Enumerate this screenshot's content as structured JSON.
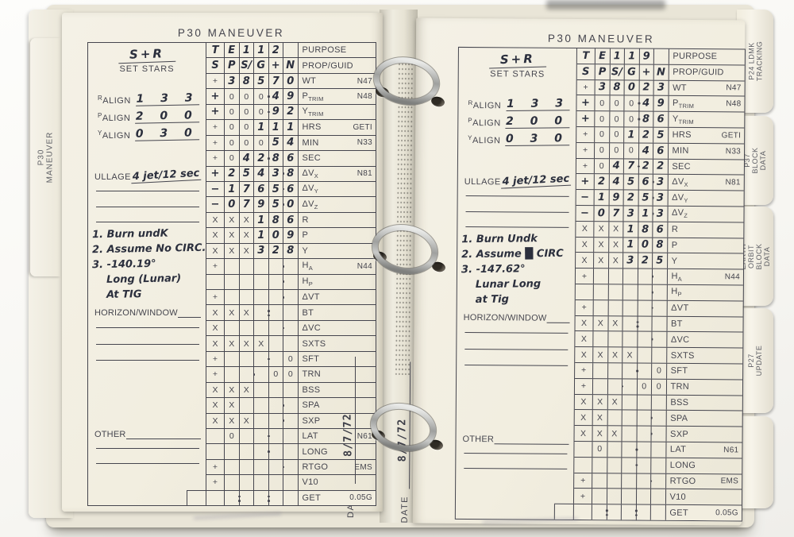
{
  "binder": {
    "left_tab": "P30 MANEUVER",
    "right_tabs": [
      "P24 LDMK TRACKING",
      "P37 BLOCK DATA",
      "EARTH ORBIT\nBLOCK DATA",
      "P27 UPDATE"
    ]
  },
  "colors": {
    "paper": "#f2eee0",
    "ink": "#45454e",
    "handwriting": "#2b2f3d",
    "ring_metal": "#b9bab8"
  },
  "pages": [
    {
      "side": "left",
      "title": "P30 MANEUVER",
      "header_hw": "S+R",
      "header_printed": "SET STARS",
      "aligns": [
        {
          "sup": "R",
          "label": "ALIGN",
          "value": "1 3 3"
        },
        {
          "sup": "P",
          "label": "ALIGN",
          "value": "2 0 0"
        },
        {
          "sup": "Y",
          "label": "ALIGN",
          "value": "0 3 0"
        }
      ],
      "ullage": {
        "label": "ULLAGE",
        "value": "4 jet/12 sec"
      },
      "notes": [
        {
          "t": "1. Burn undK"
        },
        {
          "t": "2. Assume No CIRC."
        },
        {
          "t": "3. -140.19°"
        },
        {
          "t": "Long (Lunar)",
          "i": 1
        },
        {
          "t": "At TIG",
          "i": 1
        }
      ],
      "horizon_label": "HORIZON/WINDOW",
      "other_label": "OTHER",
      "date": {
        "label": "DATE",
        "value": "8/7/72"
      },
      "grid": [
        {
          "s": "T",
          "sh": 1,
          "c": [
            "E",
            "1",
            "1",
            "2",
            ""
          ],
          "hw": 0,
          "lab": {
            "m": "PURPOSE"
          }
        },
        {
          "s": "S",
          "sh": 1,
          "c": [
            "P",
            "S/",
            "G",
            "+",
            "N"
          ],
          "hw": 0,
          "lab": {
            "m": "PROP/GUID"
          }
        },
        {
          "g": 1,
          "s": "+",
          "c": [
            "3",
            "8",
            "5",
            "7",
            "0"
          ],
          "hw": 0,
          "lab": {
            "m": "WT",
            "ref": "N47"
          }
        },
        {
          "g": 1,
          "s": "+",
          "sh": 1,
          "c": [
            "0",
            "0",
            "0",
            "4",
            "9"
          ],
          "hw": 3,
          "d": 2,
          "lab": {
            "m": "P",
            "sub": "TRIM",
            "ref": "N48"
          }
        },
        {
          "s": "+",
          "sh": 1,
          "c": [
            "0",
            "0",
            "0",
            "9",
            "2"
          ],
          "hw": 3,
          "d": 2,
          "lab": {
            "m": "Y",
            "sub": "TRIM"
          }
        },
        {
          "g": 1,
          "s": "+",
          "c": [
            "0",
            "0",
            "1",
            "1",
            "1"
          ],
          "hw": 2,
          "lab": {
            "m": "HRS",
            "ref": "GETI"
          }
        },
        {
          "s": "+",
          "c": [
            "0",
            "0",
            "0",
            "5",
            "4"
          ],
          "hw": 3,
          "lab": {
            "m": "MIN",
            "ref": "N33"
          }
        },
        {
          "s": "+",
          "c": [
            "0",
            "4",
            "2",
            "8",
            "6"
          ],
          "hw": 1,
          "d": 2,
          "lab": {
            "m": "SEC"
          }
        },
        {
          "g": 1,
          "s": "+",
          "sh": 1,
          "c": [
            "2",
            "5",
            "4",
            "3",
            "8"
          ],
          "hw": 0,
          "d": 3,
          "lab": {
            "m": "ΔV",
            "sub": "X",
            "ref": "N81"
          }
        },
        {
          "s": "−",
          "sh": 1,
          "c": [
            "1",
            "7",
            "6",
            "5",
            "6"
          ],
          "hw": 0,
          "d": 3,
          "lab": {
            "m": "ΔV",
            "sub": "Y"
          }
        },
        {
          "s": "−",
          "sh": 1,
          "c": [
            "0",
            "7",
            "9",
            "5",
            "0"
          ],
          "hw": 0,
          "d": 3,
          "lab": {
            "m": "ΔV",
            "sub": "Z"
          }
        },
        {
          "g": 1,
          "s": "X",
          "c": [
            "X",
            "X",
            "1",
            "8",
            "6"
          ],
          "hw": 2,
          "lab": {
            "m": "R"
          }
        },
        {
          "s": "X",
          "c": [
            "X",
            "X",
            "1",
            "0",
            "9"
          ],
          "hw": 2,
          "lab": {
            "m": "P"
          }
        },
        {
          "s": "X",
          "c": [
            "X",
            "X",
            "3",
            "2",
            "8"
          ],
          "hw": 2,
          "lab": {
            "m": "Y"
          }
        },
        {
          "g": 1,
          "s": "+",
          "c": [
            "",
            "",
            "",
            "",
            ""
          ],
          "d": 3,
          "lab": {
            "m": "H",
            "sub": "A",
            "ref": "N44"
          }
        },
        {
          "c": [
            "",
            "",
            "",
            "",
            ""
          ],
          "d": 3,
          "lab": {
            "m": "H",
            "sub": "P"
          }
        },
        {
          "g": 1,
          "s": "+",
          "c": [
            "",
            "",
            "",
            "",
            ""
          ],
          "d": 3,
          "lab": {
            "m": "ΔVT"
          }
        },
        {
          "s": "X",
          "c": [
            "X",
            "X",
            "",
            "",
            ""
          ],
          "col": [
            2
          ],
          "lab": {
            "m": "BT"
          }
        },
        {
          "s": "X",
          "c": [
            "",
            "",
            "",
            "",
            ""
          ],
          "d": 3,
          "lab": {
            "m": "ΔVC"
          }
        },
        {
          "g": 1,
          "s": "X",
          "c": [
            "X",
            "X",
            "X",
            "",
            ""
          ],
          "lab": {
            "m": "SXTS"
          }
        },
        {
          "s": "+",
          "c": [
            "",
            "",
            "",
            "",
            "0"
          ],
          "d": 2,
          "lab": {
            "m": "SFT"
          }
        },
        {
          "s": "+",
          "c": [
            "",
            "",
            "",
            "0",
            "0"
          ],
          "d": 1,
          "lab": {
            "m": "TRN"
          }
        },
        {
          "g": 1,
          "s": "X",
          "c": [
            "X",
            "X",
            "",
            "",
            ""
          ],
          "lab": {
            "m": "BSS"
          }
        },
        {
          "s": "X",
          "c": [
            "X",
            "",
            "",
            "",
            ""
          ],
          "d": 3,
          "lab": {
            "m": "SPA"
          }
        },
        {
          "s": "X",
          "c": [
            "X",
            "X",
            "",
            "",
            ""
          ],
          "d": 3,
          "lab": {
            "m": "SXP"
          }
        },
        {
          "g": 1,
          "c": [
            "0",
            "",
            "",
            "",
            ""
          ],
          "d": 2,
          "lab": {
            "m": "LAT",
            "ref": "N61"
          }
        },
        {
          "c": [
            "",
            "",
            "",
            "",
            ""
          ],
          "d": 2,
          "lab": {
            "m": "LONG"
          }
        },
        {
          "g": 1,
          "s": "+",
          "c": [
            "",
            "",
            "",
            "",
            ""
          ],
          "d": 3,
          "lab": {
            "m": "RTGO",
            "ref": "EMS"
          }
        },
        {
          "s": "+",
          "c": [
            "",
            "",
            "",
            "",
            ""
          ],
          "lab": {
            "m": "V10"
          }
        },
        {
          "g": 1,
          "shift": 1,
          "c": [
            "",
            "",
            "",
            "",
            ""
          ],
          "col": [
            0,
            2
          ],
          "lab": {
            "m": "GET",
            "ref": "0.05G"
          }
        }
      ]
    },
    {
      "side": "right",
      "title": "P30 MANEUVER",
      "header_hw": "S+R",
      "header_printed": "SET STARS",
      "aligns": [
        {
          "sup": "R",
          "label": "ALIGN",
          "value": "1 3 3"
        },
        {
          "sup": "P",
          "label": "ALIGN",
          "value": "2 0 0"
        },
        {
          "sup": "Y",
          "label": "ALIGN",
          "value": "0 3 0"
        }
      ],
      "ullage": {
        "label": "ULLAGE",
        "value": "4 jet/12 sec"
      },
      "notes": [
        {
          "t": "1. Burn Undk"
        },
        {
          "t": "2. Assume █ CIRC"
        },
        {
          "t": "3. -147.62°"
        },
        {
          "t": "Lunar Long",
          "i": 1
        },
        {
          "t": "at Tig",
          "i": 1
        }
      ],
      "horizon_label": "HORIZON/WINDOW",
      "other_label": "OTHER",
      "date": {
        "label": "DATE",
        "value": "8/7/72"
      },
      "grid": [
        {
          "s": "T",
          "sh": 1,
          "c": [
            "E",
            "1",
            "1",
            "9",
            ""
          ],
          "hw": 0,
          "lab": {
            "m": "PURPOSE"
          }
        },
        {
          "s": "S",
          "sh": 1,
          "c": [
            "P",
            "S/",
            "G",
            "+",
            "N"
          ],
          "hw": 0,
          "lab": {
            "m": "PROP/GUID"
          }
        },
        {
          "g": 1,
          "s": "+",
          "c": [
            "3",
            "8",
            "0",
            "2",
            "3"
          ],
          "hw": 0,
          "lab": {
            "m": "WT",
            "ref": "N47"
          }
        },
        {
          "g": 1,
          "s": "+",
          "sh": 1,
          "c": [
            "0",
            "0",
            "0",
            "4",
            "9"
          ],
          "hw": 3,
          "d": 2,
          "lab": {
            "m": "P",
            "sub": "TRIM",
            "ref": "N48"
          }
        },
        {
          "s": "+",
          "sh": 1,
          "c": [
            "0",
            "0",
            "0",
            "8",
            "6"
          ],
          "hw": 3,
          "d": 2,
          "lab": {
            "m": "Y",
            "sub": "TRIM"
          }
        },
        {
          "g": 1,
          "s": "+",
          "c": [
            "0",
            "0",
            "1",
            "2",
            "5"
          ],
          "hw": 2,
          "lab": {
            "m": "HRS",
            "ref": "GETI"
          }
        },
        {
          "s": "+",
          "c": [
            "0",
            "0",
            "0",
            "4",
            "6"
          ],
          "hw": 3,
          "lab": {
            "m": "MIN",
            "ref": "N33"
          }
        },
        {
          "s": "+",
          "c": [
            "0",
            "4",
            "7",
            "2",
            "2"
          ],
          "hw": 1,
          "d": 2,
          "lab": {
            "m": "SEC"
          }
        },
        {
          "g": 1,
          "s": "+",
          "sh": 1,
          "c": [
            "2",
            "4",
            "5",
            "6",
            "3"
          ],
          "hw": 0,
          "d": 3,
          "lab": {
            "m": "ΔV",
            "sub": "X",
            "ref": "N81"
          }
        },
        {
          "s": "−",
          "sh": 1,
          "c": [
            "1",
            "9",
            "2",
            "5",
            "3"
          ],
          "hw": 0,
          "d": 3,
          "lab": {
            "m": "ΔV",
            "sub": "Y"
          }
        },
        {
          "s": "−",
          "sh": 1,
          "c": [
            "0",
            "7",
            "3",
            "1",
            "3"
          ],
          "hw": 0,
          "d": 3,
          "lab": {
            "m": "ΔV",
            "sub": "Z"
          }
        },
        {
          "g": 1,
          "s": "X",
          "c": [
            "X",
            "X",
            "1",
            "8",
            "6"
          ],
          "hw": 2,
          "lab": {
            "m": "R"
          }
        },
        {
          "s": "X",
          "c": [
            "X",
            "X",
            "1",
            "0",
            "8"
          ],
          "hw": 2,
          "lab": {
            "m": "P"
          }
        },
        {
          "s": "X",
          "c": [
            "X",
            "X",
            "3",
            "2",
            "5"
          ],
          "hw": 2,
          "lab": {
            "m": "Y"
          }
        },
        {
          "g": 1,
          "s": "+",
          "c": [
            "",
            "",
            "",
            "",
            ""
          ],
          "d": 3,
          "lab": {
            "m": "H",
            "sub": "A",
            "ref": "N44"
          }
        },
        {
          "c": [
            "",
            "",
            "",
            "",
            ""
          ],
          "d": 3,
          "lab": {
            "m": "H",
            "sub": "P"
          }
        },
        {
          "g": 1,
          "s": "+",
          "c": [
            "",
            "",
            "",
            "",
            ""
          ],
          "d": 3,
          "lab": {
            "m": "ΔVT"
          }
        },
        {
          "s": "X",
          "c": [
            "X",
            "X",
            "",
            "",
            ""
          ],
          "col": [
            2
          ],
          "lab": {
            "m": "BT"
          }
        },
        {
          "s": "X",
          "c": [
            "",
            "",
            "",
            "",
            ""
          ],
          "d": 3,
          "lab": {
            "m": "ΔVC"
          }
        },
        {
          "g": 1,
          "s": "X",
          "c": [
            "X",
            "X",
            "X",
            "",
            ""
          ],
          "lab": {
            "m": "SXTS"
          }
        },
        {
          "s": "+",
          "c": [
            "",
            "",
            "",
            "",
            "0"
          ],
          "d": 2,
          "lab": {
            "m": "SFT"
          }
        },
        {
          "s": "+",
          "c": [
            "",
            "",
            "",
            "0",
            "0"
          ],
          "d": 1,
          "lab": {
            "m": "TRN"
          }
        },
        {
          "g": 1,
          "s": "X",
          "c": [
            "X",
            "X",
            "",
            "",
            ""
          ],
          "lab": {
            "m": "BSS"
          }
        },
        {
          "s": "X",
          "c": [
            "X",
            "",
            "",
            "",
            ""
          ],
          "d": 3,
          "lab": {
            "m": "SPA"
          }
        },
        {
          "s": "X",
          "c": [
            "X",
            "X",
            "",
            "",
            ""
          ],
          "d": 3,
          "lab": {
            "m": "SXP"
          }
        },
        {
          "g": 1,
          "c": [
            "0",
            "",
            "",
            "",
            ""
          ],
          "d": 2,
          "lab": {
            "m": "LAT",
            "ref": "N61"
          }
        },
        {
          "c": [
            "",
            "",
            "",
            "",
            ""
          ],
          "d": 2,
          "lab": {
            "m": "LONG"
          }
        },
        {
          "g": 1,
          "s": "+",
          "c": [
            "",
            "",
            "",
            "",
            ""
          ],
          "d": 3,
          "lab": {
            "m": "RTGO",
            "ref": "EMS"
          }
        },
        {
          "s": "+",
          "c": [
            "",
            "",
            "",
            "",
            ""
          ],
          "lab": {
            "m": "V10"
          }
        },
        {
          "g": 1,
          "shift": 1,
          "c": [
            "",
            "",
            "",
            "",
            ""
          ],
          "col": [
            0,
            2
          ],
          "lab": {
            "m": "GET",
            "ref": "0.05G"
          }
        }
      ]
    }
  ]
}
